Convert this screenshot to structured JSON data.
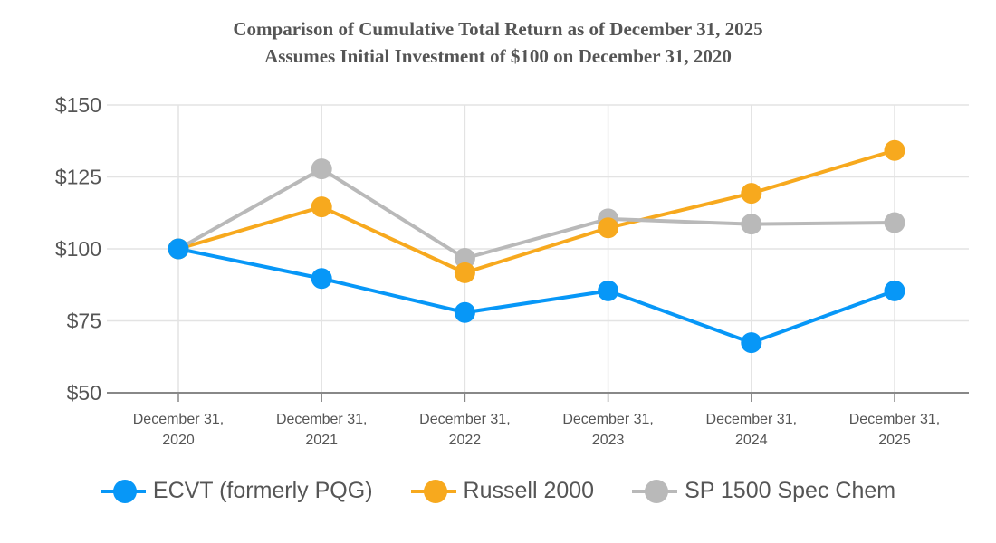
{
  "chart_data": {
    "type": "line",
    "title": "Comparison of Cumulative Total Return as of December 31, 2025",
    "subtitle": "Assumes Initial Investment of $100 on December 31, 2020",
    "categories": [
      "December 31, 2020",
      "December 31, 2021",
      "December 31, 2022",
      "December 31, 2023",
      "December 31, 2024",
      "December 31, 2025"
    ],
    "category_lines": [
      [
        "December 31,",
        "2020"
      ],
      [
        "December 31,",
        "2021"
      ],
      [
        "December 31,",
        "2022"
      ],
      [
        "December 31,",
        "2023"
      ],
      [
        "December 31,",
        "2024"
      ],
      [
        "December 31,",
        "2025"
      ]
    ],
    "ylim": [
      50,
      150
    ],
    "yticks": [
      50,
      75,
      100,
      125,
      150
    ],
    "ytick_labels": [
      "$50",
      "$75",
      "$100",
      "$125",
      "$150"
    ],
    "grid": true,
    "legend_placement": "bottom",
    "series": [
      {
        "name": "ECVT (formerly PQG)",
        "color": "#0797f7",
        "values": [
          100,
          89.7,
          77.9,
          85.4,
          67.4,
          85.4
        ]
      },
      {
        "name": "Russell 2000",
        "color": "#f7a91e",
        "values": [
          100,
          114.6,
          91.7,
          107.3,
          119.3,
          134.2
        ]
      },
      {
        "name": "SP 1500 Spec Chem",
        "color": "#b9b9b9",
        "values": [
          100,
          127.8,
          96.7,
          110.4,
          108.6,
          109.1
        ]
      }
    ]
  }
}
